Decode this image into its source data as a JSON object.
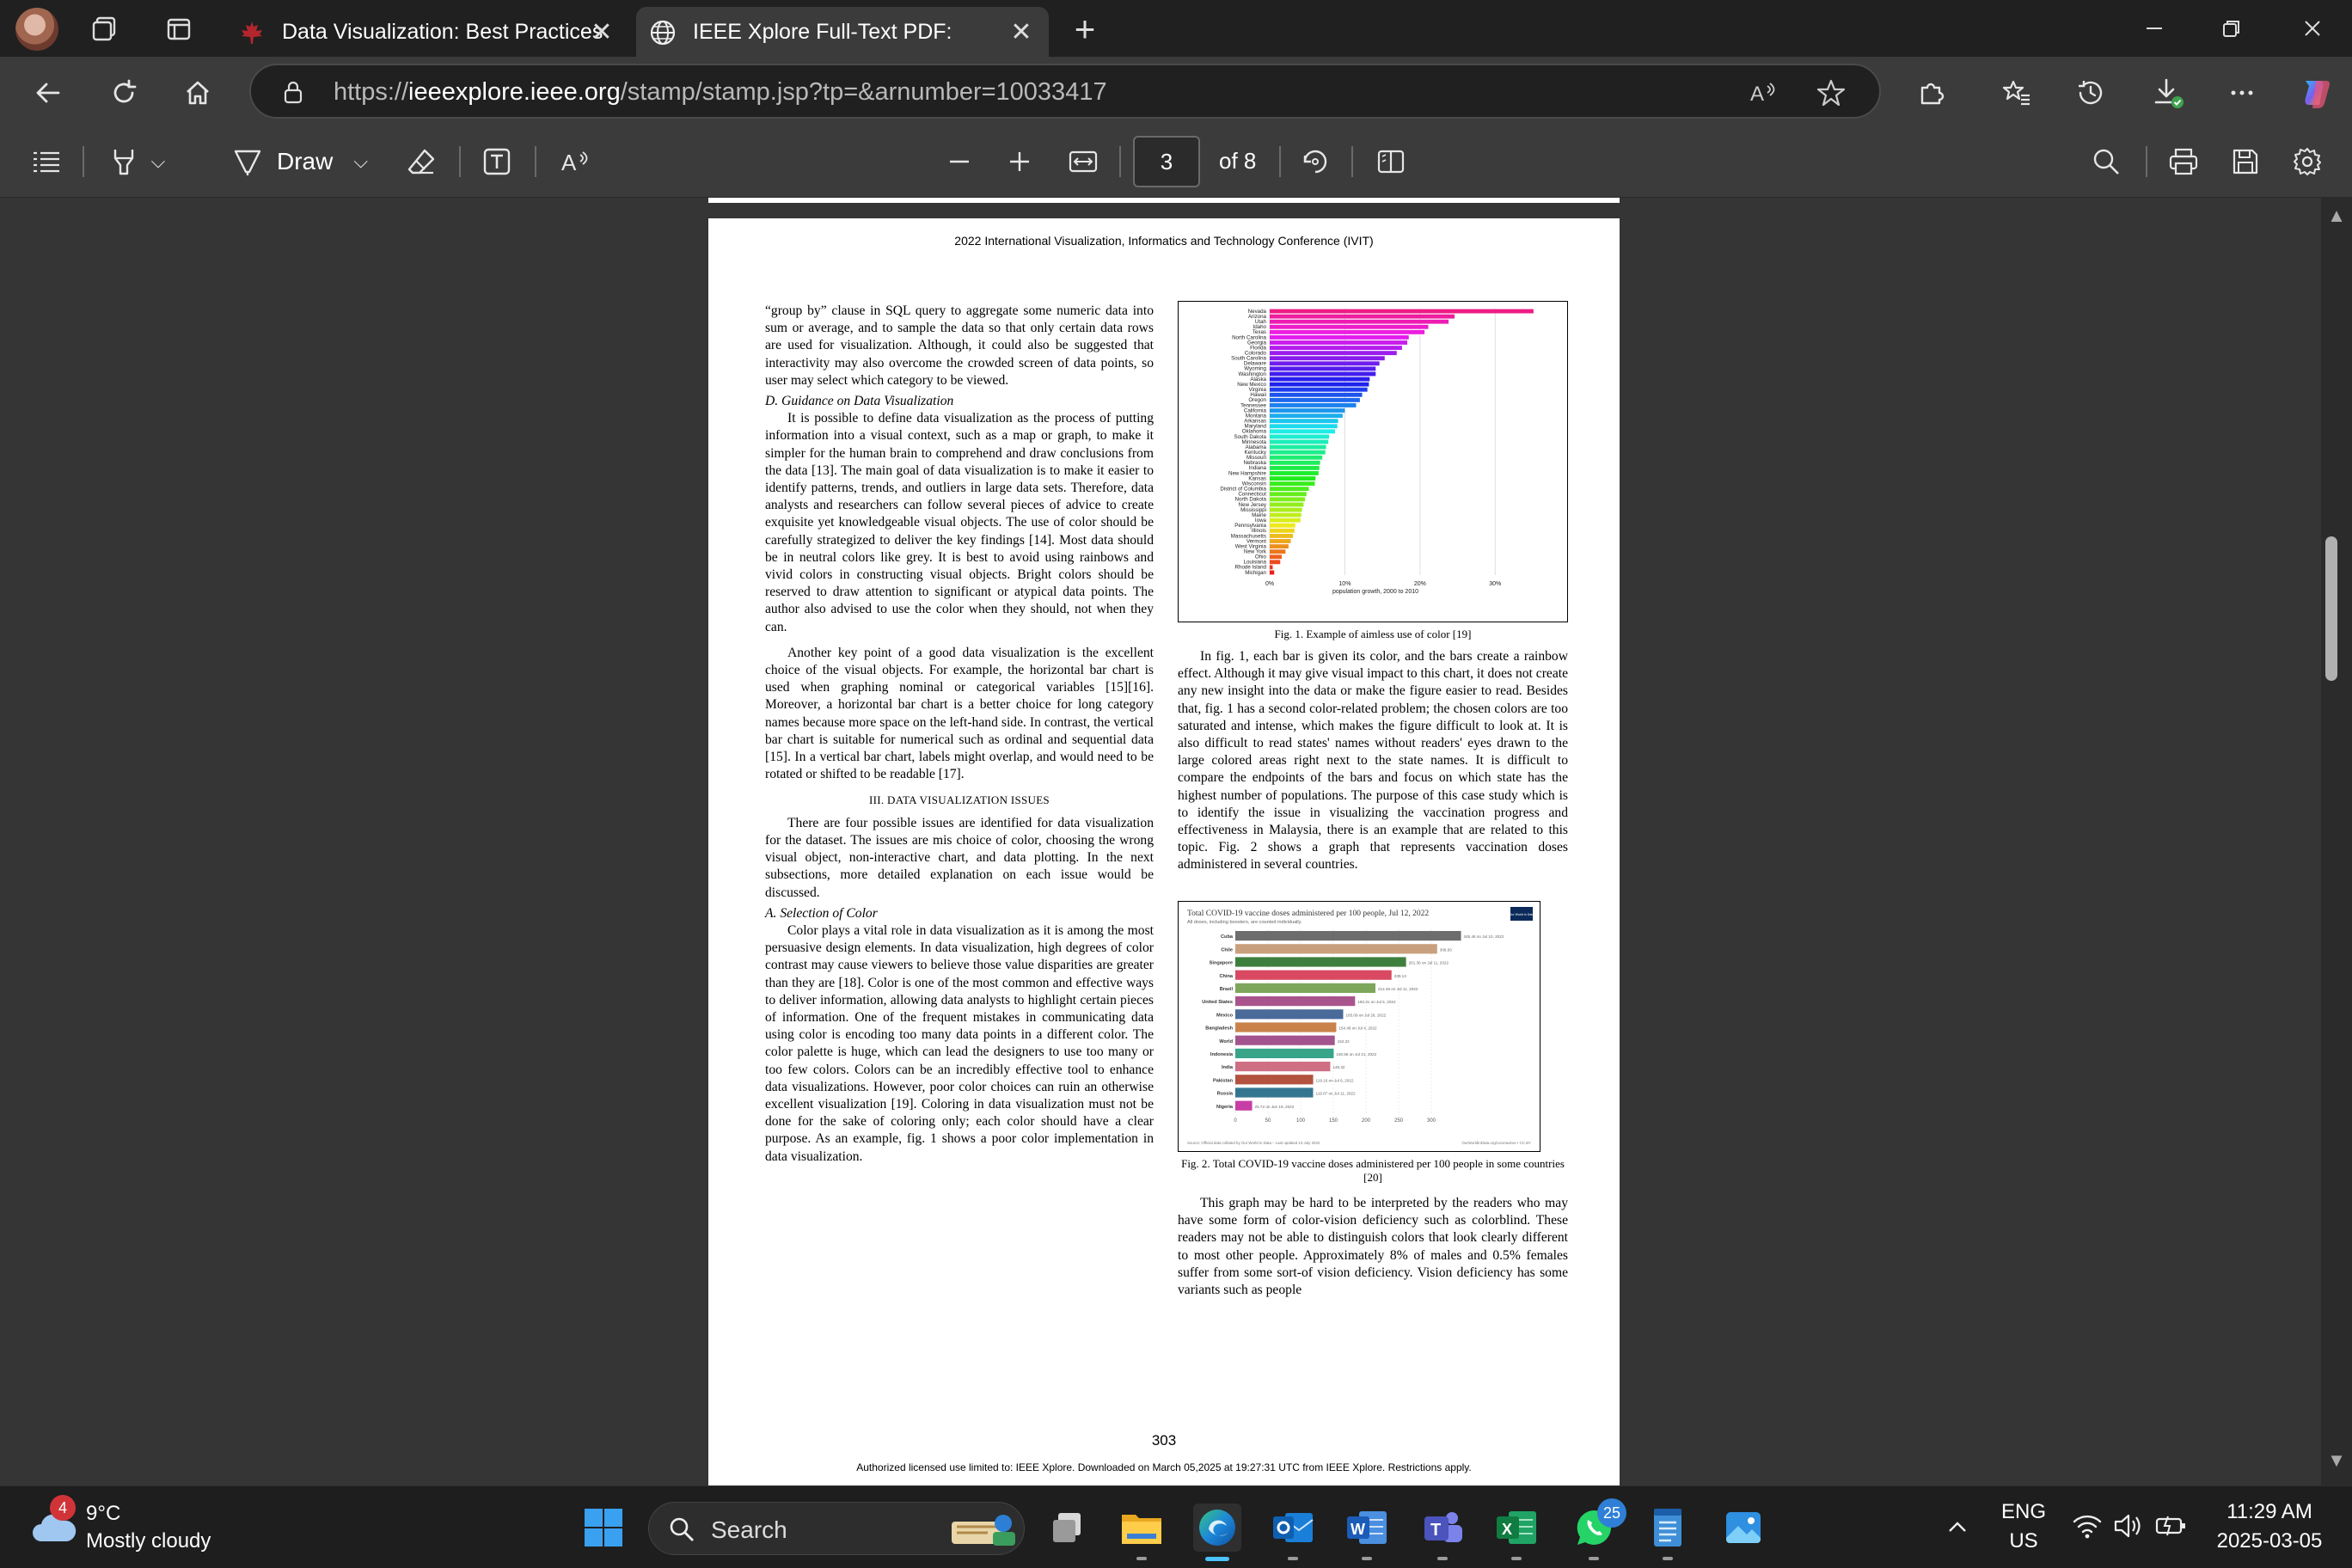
{
  "browser": {
    "tabs": [
      {
        "title": "Data Visualization: Best Practices",
        "active": false
      },
      {
        "title": "IEEE Xplore Full-Text PDF:",
        "active": true
      }
    ],
    "url_prefix": "https://",
    "url_domain": "ieeexplore.ieee.org",
    "url_path": "/stamp/stamp.jsp?tp=&arnumber=10033417"
  },
  "pdf_toolbar": {
    "draw_label": "Draw",
    "current_page": "3",
    "page_of": "of 8"
  },
  "document": {
    "header": "2022 International Visualization, Informatics and Technology Conference (IVIT)",
    "left_col": {
      "p1": "“group by” clause in SQL query to aggregate some numeric data into sum or average, and to sample the data so that only certain data rows are used for visualization. Although, it could also be suggested that interactivity may also overcome the crowded screen of data points, so user may select which category to be viewed.",
      "sub_d": "D. Guidance on Data Visualization",
      "p2": "It is possible to define data visualization as the process of putting information into a visual context, such as a map or graph, to make it simpler for the human brain to comprehend and draw conclusions from the data [13]. The main goal of data visualization is to make it easier to identify patterns, trends, and outliers in large data sets. Therefore, data analysts and researchers can follow several pieces of advice to create exquisite yet knowledgeable visual objects. The use of color should be carefully strategized to deliver the key findings [14]. Most data should be in neutral colors like grey. It is best to avoid using rainbows and vivid colors in constructing visual objects. Bright colors should be reserved to draw attention to significant or atypical data points. The author also advised to use the color when they should, not when they can.",
      "p3": "Another key point of a good data visualization is the excellent choice of the visual objects. For example, the horizontal bar chart is used when graphing nominal or categorical variables [15][16]. Moreover, a horizontal bar chart is a better choice for long category names because more space on the left-hand side. In contrast, the vertical bar chart is suitable for numerical such as ordinal and sequential data [15]. In a vertical bar chart, labels might overlap, and would need to be rotated or shifted to be readable [17].",
      "sec3": "III. DATA VISUALIZATION ISSUES",
      "p4": "There are four possible issues are identified for data visualization for the dataset. The issues are mis choice of color, choosing the wrong visual object, non-interactive chart, and data plotting. In the next subsections, more detailed explanation on each issue would be discussed.",
      "sub_a": "A. Selection of Color",
      "p5": "Color plays a vital role in data visualization as it is among the most persuasive design elements. In data visualization, high degrees of color contrast may cause viewers to believe those value disparities are greater than they are [18]. Color is one of the most common and effective ways to deliver information, allowing data analysts to highlight certain pieces of information. One of the frequent mistakes in communicating data using color is encoding too many data points in a different color. The color palette is huge, which can lead the designers to use too many or too few colors. Colors can be an incredibly effective tool to enhance data visualizations. However, poor color choices can ruin an otherwise excellent visualization [19]. Coloring in data visualization must not be done for the sake of coloring only; each color should have a clear purpose. As an example, fig. 1 shows a poor color implementation in data visualization."
    },
    "right_col": {
      "fig1_caption": "Fig. 1. Example of aimless use of color [19]",
      "p1": "In fig. 1, each bar is given its color, and the bars create a rainbow effect. Although it may give visual impact to this chart, it does not create any new insight into the data or make the figure easier to read. Besides that, fig. 1 has a second color-related problem; the chosen colors are too saturated and intense, which makes the figure difficult to look at. It is also difficult to read states' names without readers' eyes drawn to the large colored areas right next to the state names. It is difficult to compare the endpoints of the bars and focus on which state has the highest number of populations. The purpose of this case study which is to identify the issue in visualizing the vaccination progress and effectiveness in Malaysia, there is an example that are related to this topic. Fig. 2 shows a graph that represents vaccination doses administered in several countries.",
      "fig2_caption": "Fig. 2. Total COVID-19 vaccine doses administered per 100 people in some countries [20]",
      "p2": "This graph may be hard to be interpreted by the readers who may have some form of color-vision deficiency such as colorblind. These readers may not be able to distinguish colors that look clearly different to most other people. Approximately 8% of males and 0.5% females suffer from some sort-of vision deficiency. Vision deficiency has some variants such as people"
    },
    "page_number": "303",
    "footnote": "Authorized licensed use limited to: IEEE Xplore. Downloaded on March 05,2025 at 19:27:31 UTC from IEEE Xplore.  Restrictions apply."
  },
  "chart_data": [
    {
      "type": "bar",
      "orientation": "horizontal",
      "xlabel": "population growth, 2000 to 2010",
      "xticks": [
        "0%",
        "10%",
        "20%",
        "30%"
      ],
      "xlim": [
        0,
        0.35
      ],
      "categories": [
        "Nevada",
        "Arizona",
        "Utah",
        "Idaho",
        "Texas",
        "North Carolina",
        "Georgia",
        "Florida",
        "Colorado",
        "South Carolina",
        "Delaware",
        "Wyoming",
        "Washington",
        "Alaska",
        "New Mexico",
        "Virginia",
        "Hawaii",
        "Oregon",
        "Tennessee",
        "California",
        "Montana",
        "Arkansas",
        "Maryland",
        "Oklahoma",
        "South Dakota",
        "Minnesota",
        "Alabama",
        "Kentucky",
        "Missouri",
        "Nebraska",
        "Indiana",
        "New Hampshire",
        "Kansas",
        "Wisconsin",
        "District of Columbia",
        "Connecticut",
        "North Dakota",
        "New Jersey",
        "Mississippi",
        "Maine",
        "Iowa",
        "Pennsylvania",
        "Illinois",
        "Massachusetts",
        "Vermont",
        "West Virginia",
        "New York",
        "Ohio",
        "Louisiana",
        "Rhode Island",
        "Michigan"
      ],
      "values": [
        0.351,
        0.246,
        0.238,
        0.211,
        0.206,
        0.185,
        0.183,
        0.176,
        0.169,
        0.153,
        0.146,
        0.141,
        0.141,
        0.133,
        0.132,
        0.13,
        0.123,
        0.12,
        0.115,
        0.1,
        0.097,
        0.091,
        0.09,
        0.087,
        0.079,
        0.078,
        0.075,
        0.074,
        0.07,
        0.067,
        0.066,
        0.065,
        0.061,
        0.06,
        0.052,
        0.049,
        0.047,
        0.045,
        0.043,
        0.042,
        0.041,
        0.034,
        0.033,
        0.031,
        0.028,
        0.025,
        0.021,
        0.016,
        0.014,
        0.004,
        -0.006
      ]
    },
    {
      "type": "bar",
      "orientation": "horizontal",
      "title": "Total COVID-19 vaccine doses administered per 100 people, Jul 12, 2022",
      "subtitle": "All doses, including boosters, are counted individually.",
      "source": "Source: Official data collated by Our World in Data – Last updated 13 July 2022",
      "license": "OurWorldInData.org/coronavirus • CC BY",
      "logo": "Our World in Data",
      "xticks": [
        "0",
        "50",
        "100",
        "150",
        "200",
        "250",
        "300"
      ],
      "xlim": [
        0,
        350
      ],
      "categories": [
        "Cuba",
        "Chile",
        "Singapore",
        "China",
        "Brazil",
        "United States",
        "Mexico",
        "Bangladesh",
        "World",
        "Indonesia",
        "India",
        "Pakistan",
        "Russia",
        "Nigeria"
      ],
      "values": [
        345.46,
        308.93,
        261.36,
        239.13,
        214.46,
        183.31,
        165.09,
        154.49,
        152.22,
        150.56,
        145.32,
        119.16,
        119.07,
        25.72
      ],
      "value_labels": [
        "345.46 on Jul 10, 2022",
        "308.93",
        "261.36 on Jul 11, 2022",
        "239.13",
        "214.46 on Jul 11, 2022",
        "183.31 on Jul 5, 2022",
        "165.09 on Jul 26, 2022",
        "154.49 on Jul 4, 2022",
        "152.22",
        "150.56 on Jul 21, 2022",
        "145.32",
        "119.16 on Jul 6, 2022",
        "119.07 on Jul 11, 2022",
        "25.72 on Jun 19, 2022"
      ],
      "colors": [
        "#6d6d6d",
        "#c9a07d",
        "#3f7f3d",
        "#d94a62",
        "#7ea65b",
        "#a9548c",
        "#4a6a99",
        "#c9834a",
        "#a3548f",
        "#38a48a",
        "#cf6f84",
        "#b3523e",
        "#34768f",
        "#c83da5"
      ]
    }
  ],
  "taskbar": {
    "weather_temp": "9°C",
    "weather_desc": "Mostly cloudy",
    "weather_badge": "4",
    "search_label": "Search",
    "whatsapp_badge": "25",
    "lang_top": "ENG",
    "lang_bottom": "US",
    "time": "11:29 AM",
    "date": "2025-03-05"
  }
}
